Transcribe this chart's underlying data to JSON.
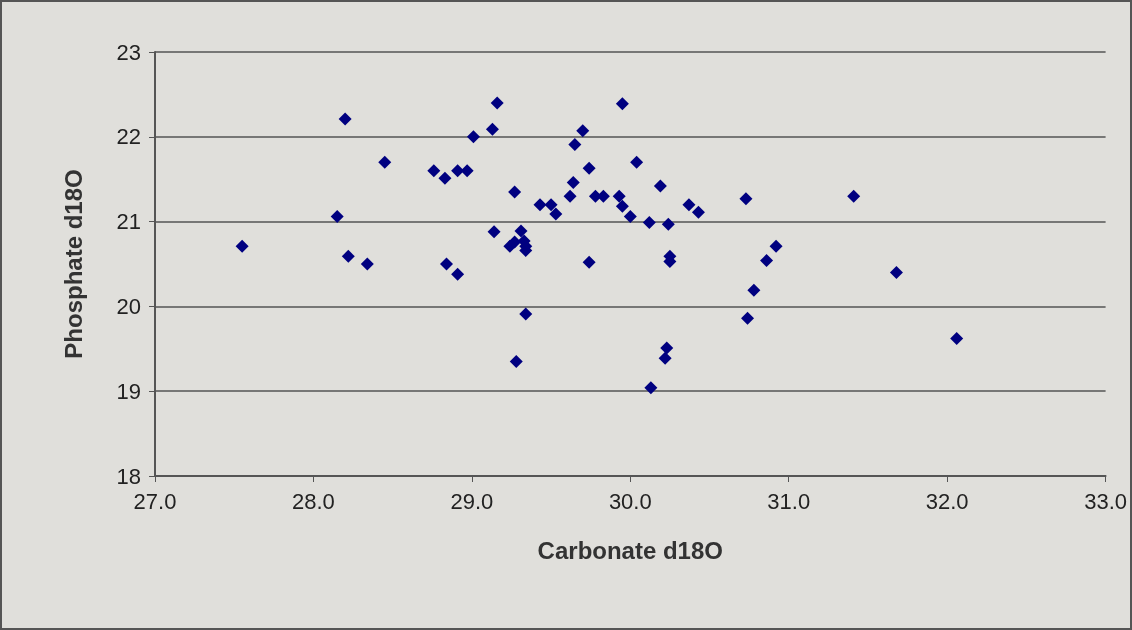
{
  "chart_data": {
    "type": "scatter",
    "xlabel": "Carbonate d18O",
    "ylabel": "Phosphate d18O",
    "marker": "diamond",
    "grid": "y",
    "xlim": [
      27,
      33
    ],
    "xticks": [
      {
        "value": 27,
        "label": "27.0"
      },
      {
        "value": 28,
        "label": "28.0"
      },
      {
        "value": 29,
        "label": "29.0"
      },
      {
        "value": 30,
        "label": "30.0"
      },
      {
        "value": 31,
        "label": "31.0"
      },
      {
        "value": 32,
        "label": "32.0"
      },
      {
        "value": 33,
        "label": "33.0"
      }
    ],
    "ylim": [
      18,
      23
    ],
    "yticks": [
      18,
      19,
      20,
      21,
      22,
      23
    ],
    "series": [
      {
        "color": "#000080",
        "x": [
          27.55,
          28.15,
          28.2,
          28.22,
          28.34,
          28.45,
          28.76,
          28.83,
          28.84,
          28.91,
          28.91,
          28.97,
          29.01,
          29.13,
          29.16,
          29.14,
          29.27,
          29.24,
          29.27,
          29.31,
          29.33,
          29.34,
          29.34,
          29.28,
          29.34,
          29.43,
          29.5,
          29.53,
          29.62,
          29.64,
          29.65,
          29.7,
          29.74,
          29.74,
          29.78,
          29.83,
          29.93,
          29.95,
          29.95,
          30.0,
          30.04,
          30.12,
          30.13,
          30.19,
          30.24,
          30.22,
          30.23,
          30.25,
          30.25,
          30.37,
          30.43,
          30.73,
          30.74,
          30.78,
          30.86,
          30.92,
          31.41,
          31.68,
          32.06
        ],
        "values": [
          20.71,
          21.06,
          22.21,
          20.59,
          20.5,
          21.7,
          21.6,
          21.51,
          20.5,
          21.6,
          20.38,
          21.6,
          22.0,
          22.09,
          22.4,
          20.88,
          21.35,
          20.71,
          20.76,
          20.89,
          20.77,
          20.71,
          20.66,
          19.35,
          19.91,
          21.2,
          21.2,
          21.09,
          21.3,
          21.46,
          21.91,
          22.07,
          21.63,
          20.52,
          21.3,
          21.3,
          21.3,
          22.39,
          21.18,
          21.06,
          21.7,
          20.99,
          19.04,
          21.42,
          20.97,
          19.39,
          19.51,
          20.59,
          20.53,
          21.2,
          21.11,
          21.27,
          19.86,
          20.19,
          20.54,
          20.71,
          21.3,
          20.4,
          19.62
        ]
      }
    ]
  }
}
